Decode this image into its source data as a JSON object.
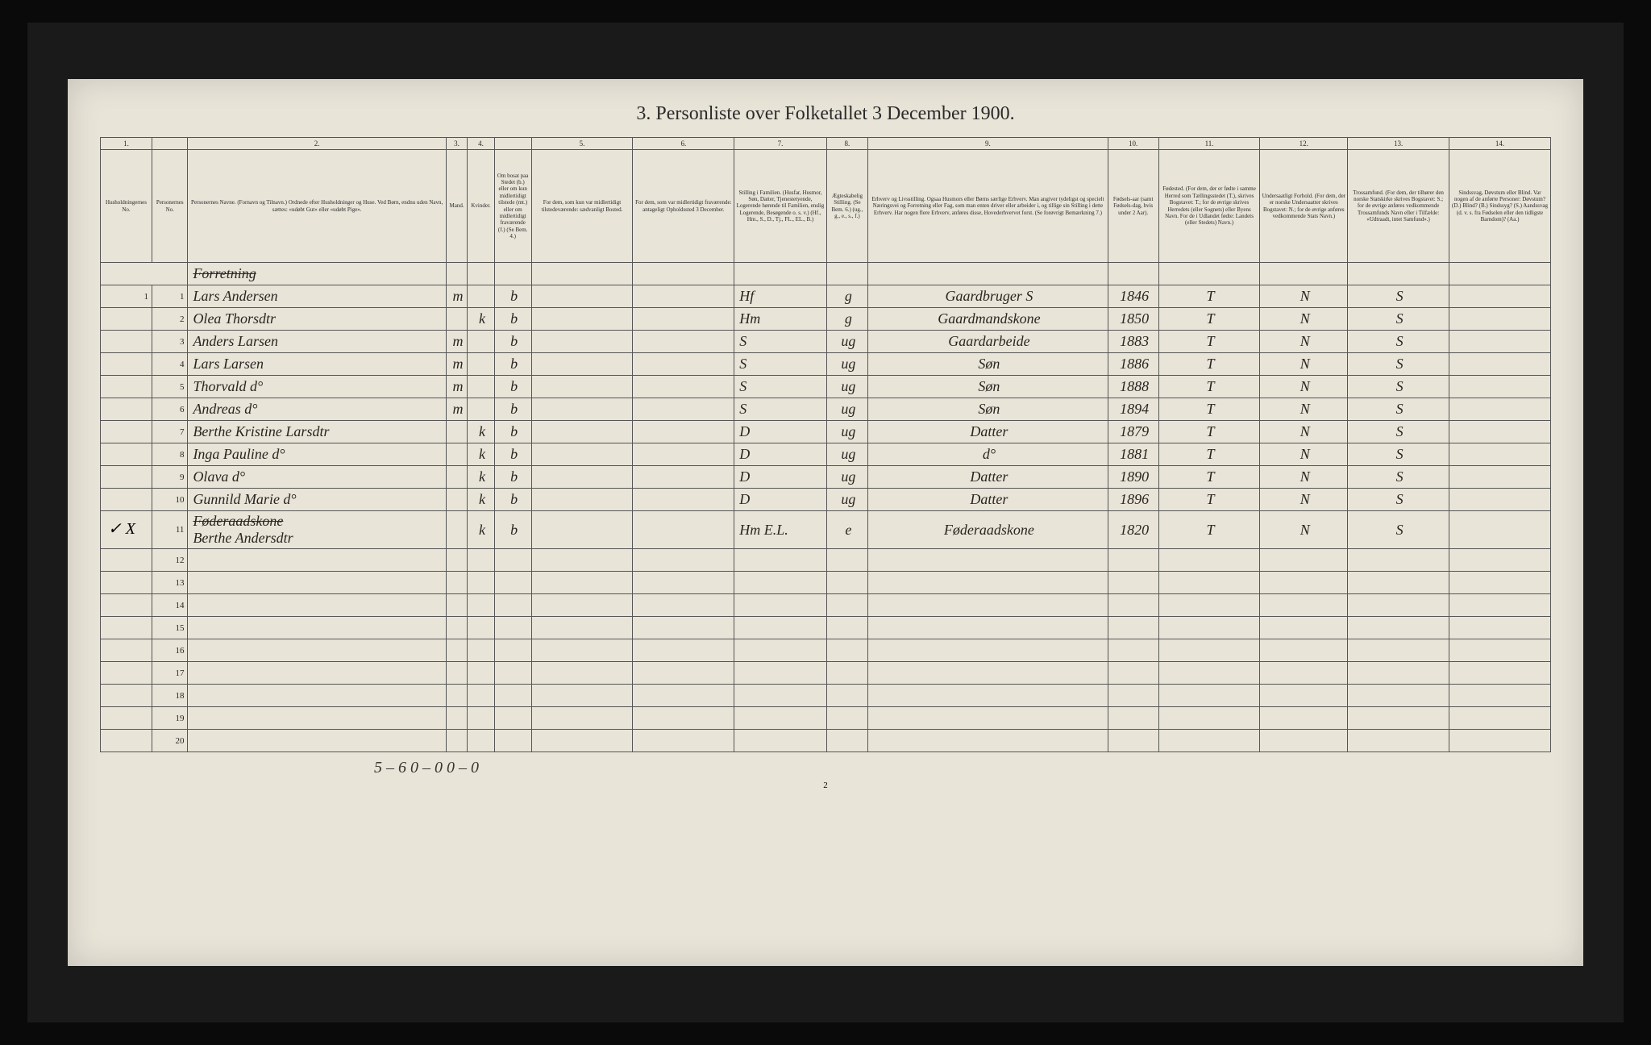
{
  "title": "3.  Personliste over Folketallet 3 December 1900.",
  "colNumbers": [
    "1.",
    "",
    "2.",
    "3.",
    "4.",
    "",
    "5.",
    "6.",
    "7.",
    "8.",
    "9.",
    "10.",
    "11.",
    "12.",
    "13.",
    "14."
  ],
  "headers": [
    "Husholdningernes No.",
    "Personernes No.",
    "Personernes Navne. (Fornavn og Tilnavn.) Ordnede efter Husholdninger og Huse. Ved Børn, endnu uden Navn, sættes: «udøbt Gut» eller «udøbt Pige».",
    "Mand.",
    "Kvinder.",
    "Om bosat paa Stedet (b.) eller om kun midlertidigt tilstede (mt.) eller om midlertidigt fraværende (f.) (Se Bem. 4.)",
    "For dem, som kun var midlertidigt tilstedeværende: sædvanligt Bosted.",
    "For dem, som var midlertidigt fraværende: antageligt Opholdssted 3 December.",
    "Stilling i Familien. (Husfar, Husmor, Søn, Datter, Tjenestetyende, Logerende hørende til Familien, enslig Logerende, Besøgende o. s. v.) (Hf., Hm., S., D., Tj., FL., EL., B.)",
    "Ægteskabelig Stilling. (Se Bem. 6.) (ug., g., e., s., f.)",
    "Erhverv og Livsstilling. Ogsaa Husmors eller Børns særlige Erhverv. Man angiver tydeligst og specielt Næringsvei og Forretning eller Fag, som man enten driver eller arbeider i, og tillige sin Stilling i dette Erhverv. Har nogen flere Erhverv, anføres disse, Hovederhvervet forst. (Se forøvrigt Bemærkning 7.)",
    "Fødsels-aar (samt Fødsels-dag, hvis under 2 Aar).",
    "Fødested. (For dem, der er fødte i samme Herred som Tællingsstedet (T.), skrives Bogstavet: T.; for de øvrige skrives Herredets (eller Sognets) eller Byens Navn. For de i Udlandet fødte: Landets (eller Stedets) Navn.)",
    "Undersaatligt Forhold. (For dem, der er norske Undersaatter skrives Bogstavet: N.; for de øvrige anføres vedkommende Stats Navn.)",
    "Trossamfund. (For dem, der tilhører den norske Statskirke skrives Bogstavet: S.; for de øvrige anføres vedkommende Trossamfunds Navn eller i Tilfælde: «Udtraadt, intet Samfund».)",
    "Sindssvag, Døvstum eller Blind. Var nogen af de anførte Personer: Døvstum? (D.) Blind? (B.) Sindssyg? (S.) Aandssvag (d. v. s. fra Fødselen eller den tidligste Barndom)? (Aa.)"
  ],
  "rows": [
    {
      "h": "1",
      "p": "1",
      "name": "Lars Andersen",
      "m": "m",
      "k": "",
      "pres": "b",
      "col9": "Hf",
      "col10": "g",
      "col11": "Gaardbruger S",
      "year": "1846",
      "col13": "T",
      "col14": "N",
      "col15": "S"
    },
    {
      "h": "",
      "p": "2",
      "name": "Olea Thorsdtr",
      "m": "",
      "k": "k",
      "pres": "b",
      "col9": "Hm",
      "col10": "g",
      "col11": "Gaardmandskone",
      "year": "1850",
      "col13": "T",
      "col14": "N",
      "col15": "S"
    },
    {
      "h": "",
      "p": "3",
      "name": "Anders Larsen",
      "m": "m",
      "k": "",
      "pres": "b",
      "col9": "S",
      "col10": "ug",
      "col11": "Gaardarbeide",
      "year": "1883",
      "col13": "T",
      "col14": "N",
      "col15": "S"
    },
    {
      "h": "",
      "p": "4",
      "name": "Lars Larsen",
      "m": "m",
      "k": "",
      "pres": "b",
      "col9": "S",
      "col10": "ug",
      "col11": "Søn",
      "year": "1886",
      "col13": "T",
      "col14": "N",
      "col15": "S"
    },
    {
      "h": "",
      "p": "5",
      "name": "Thorvald d°",
      "m": "m",
      "k": "",
      "pres": "b",
      "col9": "S",
      "col10": "ug",
      "col11": "Søn",
      "year": "1888",
      "col13": "T",
      "col14": "N",
      "col15": "S"
    },
    {
      "h": "",
      "p": "6",
      "name": "Andreas d°",
      "m": "m",
      "k": "",
      "pres": "b",
      "col9": "S",
      "col10": "ug",
      "col11": "Søn",
      "year": "1894",
      "col13": "T",
      "col14": "N",
      "col15": "S"
    },
    {
      "h": "",
      "p": "7",
      "name": "Berthe Kristine Larsdtr",
      "m": "",
      "k": "k",
      "pres": "b",
      "col9": "D",
      "col10": "ug",
      "col11": "Datter",
      "year": "1879",
      "col13": "T",
      "col14": "N",
      "col15": "S"
    },
    {
      "h": "",
      "p": "8",
      "name": "Inga Pauline d°",
      "m": "",
      "k": "k",
      "pres": "b",
      "col9": "D",
      "col10": "ug",
      "col11": "d°",
      "year": "1881",
      "col13": "T",
      "col14": "N",
      "col15": "S"
    },
    {
      "h": "",
      "p": "9",
      "name": "Olava d°",
      "m": "",
      "k": "k",
      "pres": "b",
      "col9": "D",
      "col10": "ug",
      "col11": "Datter",
      "year": "1890",
      "col13": "T",
      "col14": "N",
      "col15": "S"
    },
    {
      "h": "",
      "p": "10",
      "name": "Gunnild Marie d°",
      "m": "",
      "k": "k",
      "pres": "b",
      "col9": "D",
      "col10": "ug",
      "col11": "Datter",
      "year": "1896",
      "col13": "T",
      "col14": "N",
      "col15": "S"
    },
    {
      "h": "",
      "p": "11",
      "name": "Berthe Andersdtr",
      "m": "",
      "k": "k",
      "pres": "b",
      "col9": "Hm E.L.",
      "col10": "e",
      "col11": "Føderaadskone",
      "year": "1820",
      "col13": "T",
      "col14": "N",
      "col15": "S"
    }
  ],
  "emptyRowStart": 12,
  "emptyRowEnd": 20,
  "footerTally": "5 – 6     0 – 0       0 – 0",
  "pageNum": "2",
  "marginMark": "✓ X",
  "struckHeading": "Forretning",
  "struckRow11": "Føderaadskone"
}
